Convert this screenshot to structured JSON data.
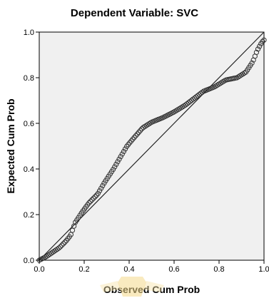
{
  "chart_data": {
    "type": "scatter",
    "title": "Dependent Variable: SVC",
    "xlabel": "Observed Cum Prob",
    "ylabel": "Expected Cum Prob",
    "xlim": [
      0,
      1
    ],
    "ylim": [
      0,
      1
    ],
    "x_ticks": [
      "0.0",
      "0.2",
      "0.4",
      "0.6",
      "0.8",
      "1.0"
    ],
    "y_ticks": [
      "0.0",
      "0.2",
      "0.4",
      "0.6",
      "0.8",
      "1.0"
    ],
    "grid": false,
    "reference_line": {
      "x": [
        0,
        1
      ],
      "y": [
        0,
        1
      ]
    },
    "curve_points": [
      [
        0.0,
        0.0
      ],
      [
        0.03,
        0.015
      ],
      [
        0.06,
        0.035
      ],
      [
        0.09,
        0.055
      ],
      [
        0.12,
        0.085
      ],
      [
        0.14,
        0.11
      ],
      [
        0.16,
        0.165
      ],
      [
        0.19,
        0.21
      ],
      [
        0.22,
        0.25
      ],
      [
        0.26,
        0.29
      ],
      [
        0.29,
        0.34
      ],
      [
        0.33,
        0.4
      ],
      [
        0.36,
        0.45
      ],
      [
        0.39,
        0.5
      ],
      [
        0.42,
        0.535
      ],
      [
        0.46,
        0.58
      ],
      [
        0.5,
        0.605
      ],
      [
        0.55,
        0.625
      ],
      [
        0.6,
        0.65
      ],
      [
        0.65,
        0.68
      ],
      [
        0.69,
        0.71
      ],
      [
        0.73,
        0.74
      ],
      [
        0.78,
        0.76
      ],
      [
        0.83,
        0.79
      ],
      [
        0.88,
        0.8
      ],
      [
        0.92,
        0.825
      ],
      [
        0.95,
        0.87
      ],
      [
        0.97,
        0.92
      ],
      [
        0.99,
        0.955
      ],
      [
        1.0,
        0.965
      ]
    ],
    "n_points": 150,
    "marker": "open-circle",
    "colors": {
      "plot_bg": "#f0f0f0",
      "marker": "#333333",
      "line": "#222222"
    }
  },
  "watermark": {
    "shape": "shield-logo"
  }
}
